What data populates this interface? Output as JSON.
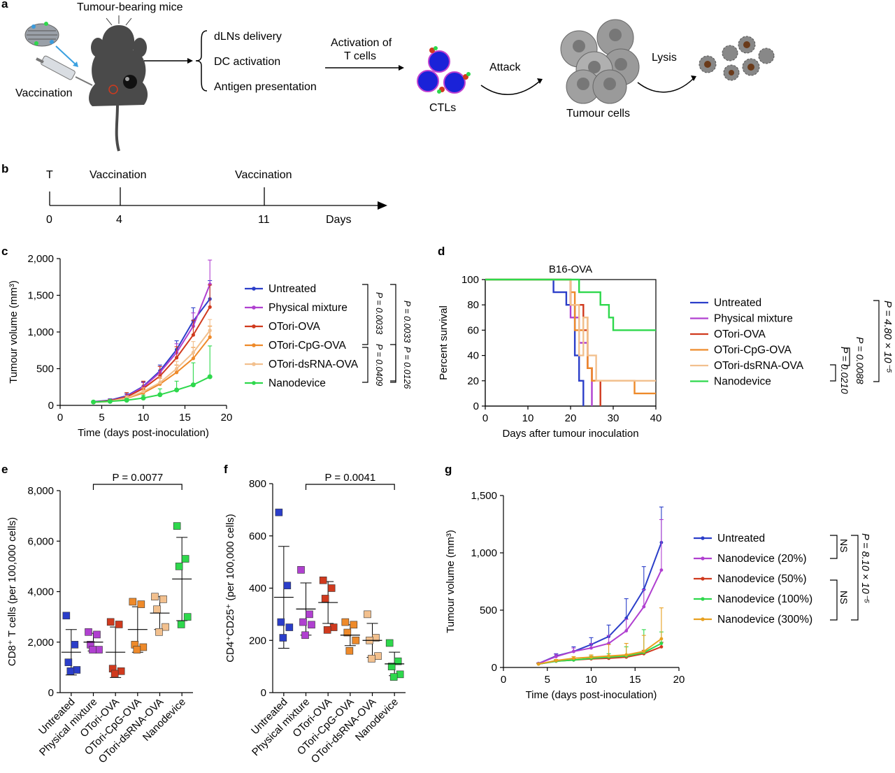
{
  "panel_a": {
    "label": "a",
    "mice_title": "Tumour-bearing mice",
    "vaccination": "Vaccination",
    "steps": [
      "dLNs delivery",
      "DC activation",
      "Antigen presentation"
    ],
    "activation_line1": "Activation of",
    "activation_line2": "T cells",
    "attack": "Attack",
    "ctls": "CTLs",
    "tumour_cells": "Tumour cells",
    "lysis": "Lysis"
  },
  "panel_b": {
    "label": "b",
    "t_label": "T",
    "events": [
      "Vaccination",
      "Vaccination"
    ],
    "ticks": [
      "0",
      "4",
      "11"
    ],
    "unit": "Days"
  },
  "chart_data": [
    {
      "id": "c",
      "label": "c",
      "type": "line",
      "xlabel": "Time (days post-inoculation)",
      "ylabel": "Tumour volume (mm³)",
      "xlim": [
        0,
        20
      ],
      "ylim": [
        0,
        2000
      ],
      "xticks": [
        "0",
        "5",
        "10",
        "15",
        "20"
      ],
      "yticks": [
        "0",
        "500",
        "1,000",
        "1,500",
        "2,000"
      ],
      "legend_position": "right",
      "x": [
        4,
        6,
        8,
        10,
        12,
        14,
        16,
        18
      ],
      "series": [
        {
          "name": "Untreated",
          "color": "#2b3ec9",
          "values": [
            50,
            70,
            130,
            260,
            470,
            760,
            1150,
            1450
          ],
          "err": [
            10,
            20,
            30,
            60,
            80,
            120,
            180,
            250
          ]
        },
        {
          "name": "Physical mixture",
          "color": "#b040d0",
          "values": [
            45,
            65,
            120,
            250,
            450,
            720,
            1080,
            1650
          ],
          "err": [
            10,
            20,
            30,
            60,
            80,
            120,
            180,
            330
          ]
        },
        {
          "name": "OTori-OVA",
          "color": "#d03a1e",
          "values": [
            45,
            62,
            115,
            230,
            400,
            650,
            960,
            1340
          ],
          "err": [
            10,
            20,
            60,
            100,
            130,
            150,
            200,
            300
          ]
        },
        {
          "name": "OTori-CpG-OVA",
          "color": "#ee8a2a",
          "values": [
            40,
            55,
            95,
            170,
            290,
            450,
            640,
            930
          ],
          "err": [
            10,
            15,
            30,
            50,
            80,
            100,
            150,
            150
          ]
        },
        {
          "name": "OTori-dsRNA-OVA",
          "color": "#f2c08e",
          "values": [
            40,
            55,
            100,
            190,
            310,
            500,
            720,
            1020
          ],
          "err": [
            10,
            15,
            30,
            50,
            80,
            100,
            150,
            150
          ]
        },
        {
          "name": "Nanodevice",
          "color": "#2ed84c",
          "values": [
            45,
            55,
            70,
            100,
            145,
            210,
            280,
            390
          ],
          "err": [
            10,
            15,
            25,
            40,
            80,
            120,
            300,
            420
          ]
        }
      ],
      "comparisons": [
        "P = 0.0033",
        "P = 0.0033",
        "P = 0.0409",
        "P = 0.0126"
      ]
    },
    {
      "id": "d",
      "label": "d",
      "type": "line",
      "title": "B16-OVA",
      "xlabel": "Days after tumour inoculation",
      "ylabel": "Percent survival",
      "xlim": [
        0,
        40
      ],
      "ylim": [
        0,
        100
      ],
      "xticks": [
        "0",
        "10",
        "20",
        "30",
        "40"
      ],
      "yticks": [
        "0",
        "20",
        "40",
        "60",
        "80",
        "100"
      ],
      "legend_position": "right",
      "series": [
        {
          "name": "Untreated",
          "color": "#2b3ec9",
          "steps": [
            [
              0,
              100
            ],
            [
              16,
              100
            ],
            [
              16,
              90
            ],
            [
              19,
              90
            ],
            [
              19,
              80
            ],
            [
              21,
              80
            ],
            [
              21,
              40
            ],
            [
              22,
              40
            ],
            [
              22,
              20
            ],
            [
              23,
              20
            ],
            [
              23,
              0
            ]
          ]
        },
        {
          "name": "Physical mixture",
          "color": "#b040d0",
          "steps": [
            [
              0,
              100
            ],
            [
              20,
              100
            ],
            [
              20,
              70
            ],
            [
              22,
              70
            ],
            [
              22,
              50
            ],
            [
              24,
              50
            ],
            [
              24,
              30
            ],
            [
              25,
              30
            ],
            [
              25,
              0
            ]
          ]
        },
        {
          "name": "OTori-OVA",
          "color": "#d03a1e",
          "steps": [
            [
              0,
              100
            ],
            [
              20,
              100
            ],
            [
              20,
              80
            ],
            [
              23,
              80
            ],
            [
              23,
              60
            ],
            [
              24,
              60
            ],
            [
              24,
              30
            ],
            [
              25,
              30
            ],
            [
              25,
              20
            ],
            [
              27,
              20
            ],
            [
              27,
              0
            ]
          ]
        },
        {
          "name": "OTori-CpG-OVA",
          "color": "#ee8a2a",
          "steps": [
            [
              0,
              100
            ],
            [
              20,
              100
            ],
            [
              20,
              90
            ],
            [
              21,
              90
            ],
            [
              21,
              60
            ],
            [
              23,
              60
            ],
            [
              23,
              70
            ],
            [
              24,
              70
            ],
            [
              24,
              30
            ],
            [
              25,
              30
            ],
            [
              25,
              20
            ],
            [
              35,
              20
            ],
            [
              35,
              10
            ],
            [
              40,
              10
            ]
          ]
        },
        {
          "name": "OTori-dsRNA-OVA",
          "color": "#f2c08e",
          "steps": [
            [
              0,
              100
            ],
            [
              20,
              100
            ],
            [
              20,
              80
            ],
            [
              22,
              80
            ],
            [
              22,
              40
            ],
            [
              23,
              40
            ],
            [
              23,
              70
            ],
            [
              24,
              70
            ],
            [
              24,
              40
            ],
            [
              26,
              40
            ],
            [
              26,
              20
            ],
            [
              40,
              20
            ]
          ]
        },
        {
          "name": "Nanodevice",
          "color": "#2ed84c",
          "steps": [
            [
              0,
              100
            ],
            [
              22,
              100
            ],
            [
              22,
              90
            ],
            [
              27,
              90
            ],
            [
              27,
              80
            ],
            [
              29,
              80
            ],
            [
              29,
              70
            ],
            [
              30,
              70
            ],
            [
              30,
              60
            ],
            [
              40,
              60
            ]
          ]
        }
      ],
      "comparisons": [
        "P = 0.0210",
        "P = 0.0088",
        "P = 4.80 × 10⁻⁵"
      ]
    },
    {
      "id": "e",
      "label": "e",
      "type": "scatter",
      "ylabel": "CD8⁺ T cells (per 100,000 cells)",
      "ylim": [
        0,
        8000
      ],
      "yticks": [
        "0",
        "2,000",
        "4,000",
        "6,000",
        "8,000"
      ],
      "categories": [
        "Untreated",
        "Physical mixture",
        "OTori-OVA",
        "OTori-CpG-OVA",
        "OTori-dsRNA-OVA",
        "Nanodevice"
      ],
      "colors": [
        "#2b3ec9",
        "#b040d0",
        "#d03a1e",
        "#ee8a2a",
        "#f2c08e",
        "#2ed84c"
      ],
      "points": [
        [
          3050,
          1900,
          1200,
          900,
          850
        ],
        [
          2400,
          2300,
          1900,
          1700,
          1700
        ],
        [
          2800,
          2700,
          950,
          850,
          750
        ],
        [
          3600,
          3500,
          1900,
          1800,
          1700
        ],
        [
          3800,
          3700,
          3300,
          2600,
          2400
        ],
        [
          6600,
          5300,
          5000,
          3000,
          2700
        ]
      ],
      "mean": [
        1600,
        2000,
        1600,
        2500,
        3150,
        4500
      ],
      "sd": [
        900,
        350,
        1000,
        900,
        650,
        1650
      ],
      "comparison": "P = 0.0077"
    },
    {
      "id": "f",
      "label": "f",
      "type": "scatter",
      "ylabel": "CD4⁺CD25⁺ (per 100,000 cells)",
      "ylim": [
        0,
        800
      ],
      "yticks": [
        "0",
        "200",
        "400",
        "600",
        "800"
      ],
      "categories": [
        "Untreated",
        "Physical mixture",
        "OTori-OVA",
        "OTori-CpG-OVA",
        "OTori-dsRNA-OVA",
        "Nanodevice"
      ],
      "colors": [
        "#2b3ec9",
        "#b040d0",
        "#d03a1e",
        "#ee8a2a",
        "#f2c08e",
        "#2ed84c"
      ],
      "points": [
        [
          690,
          410,
          270,
          250,
          210
        ],
        [
          470,
          300,
          270,
          260,
          220
        ],
        [
          430,
          400,
          360,
          250,
          240
        ],
        [
          270,
          260,
          230,
          200,
          160
        ],
        [
          300,
          210,
          200,
          140,
          130
        ],
        [
          190,
          120,
          100,
          70,
          60
        ]
      ],
      "mean": [
        365,
        320,
        345,
        220,
        200,
        110
      ],
      "sd": [
        195,
        100,
        80,
        40,
        65,
        45
      ],
      "comparison": "P = 0.0041"
    },
    {
      "id": "g",
      "label": "g",
      "type": "line",
      "xlabel": "Time (days post-inoculation)",
      "ylabel": "Tumour volume (mm³)",
      "xlim": [
        0,
        20
      ],
      "ylim": [
        0,
        1500
      ],
      "xticks": [
        "0",
        "5",
        "10",
        "15",
        "20"
      ],
      "yticks": [
        "0",
        "500",
        "1,000",
        "1,500"
      ],
      "legend_position": "right",
      "x": [
        4,
        6,
        8,
        10,
        12,
        14,
        16,
        18
      ],
      "series": [
        {
          "name": "Untreated",
          "color": "#2b3ec9",
          "values": [
            35,
            100,
            140,
            200,
            270,
            430,
            680,
            1090
          ],
          "err": [
            5,
            20,
            40,
            60,
            100,
            170,
            200,
            310
          ]
        },
        {
          "name": "Nanodevice (20%)",
          "color": "#b040d0",
          "values": [
            35,
            95,
            140,
            170,
            210,
            320,
            530,
            850
          ],
          "err": [
            5,
            20,
            30,
            40,
            70,
            100,
            150,
            440
          ]
        },
        {
          "name": "Nanodevice (50%)",
          "color": "#d03a1e",
          "values": [
            30,
            55,
            65,
            75,
            80,
            90,
            120,
            180
          ],
          "err": [
            5,
            10,
            10,
            15,
            15,
            20,
            30,
            40
          ]
        },
        {
          "name": "Nanodevice (100%)",
          "color": "#2ed84c",
          "values": [
            30,
            55,
            65,
            80,
            90,
            100,
            130,
            210
          ],
          "err": [
            5,
            10,
            15,
            20,
            30,
            80,
            200,
            100
          ]
        },
        {
          "name": "Nanodevice (300%)",
          "color": "#e8a020",
          "values": [
            30,
            60,
            80,
            90,
            100,
            110,
            140,
            250
          ],
          "err": [
            5,
            10,
            15,
            20,
            100,
            100,
            140,
            270
          ]
        }
      ],
      "comparisons": [
        "NS",
        "NS",
        "P = 8.10 × 10⁻⁵"
      ]
    }
  ]
}
